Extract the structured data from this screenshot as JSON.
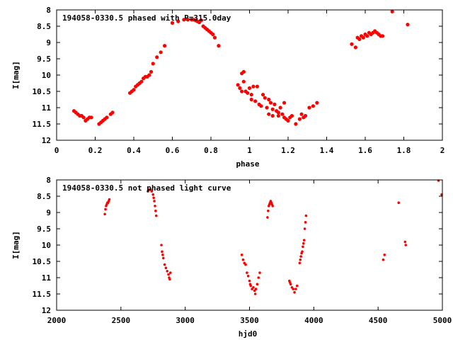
{
  "colors": {
    "points": "#ff0000",
    "axes": "#000000",
    "background": "#ffffff"
  },
  "chart_data": [
    {
      "type": "scatter",
      "title": "194058-0330.5 phased with P=315.0day",
      "xlabel": "phase",
      "ylabel": "I[mag]",
      "xlim": [
        0,
        2
      ],
      "ylim": [
        8,
        12
      ],
      "y_inverted": true,
      "grid": false,
      "xticks": [
        0,
        0.2,
        0.4,
        0.6,
        0.8,
        1,
        1.2,
        1.4,
        1.6,
        1.8,
        2
      ],
      "xtick_labels": [
        "0",
        "0.2",
        "0.4",
        "0.6",
        "0.8",
        "1",
        "1.2",
        "1.4",
        "1.6",
        "1.8",
        "2"
      ],
      "yticks": [
        8,
        8.5,
        9,
        9.5,
        10,
        10.5,
        11,
        11.5,
        12
      ],
      "ytick_labels": [
        "8",
        "8.5",
        "9",
        "9.5",
        "10",
        "10.5",
        "11",
        "11.5",
        "12"
      ],
      "series": [
        {
          "points": [
            [
              0.09,
              11.1
            ],
            [
              0.1,
              11.15
            ],
            [
              0.11,
              11.2
            ],
            [
              0.12,
              11.25
            ],
            [
              0.13,
              11.25
            ],
            [
              0.14,
              11.3
            ],
            [
              0.15,
              11.4
            ],
            [
              0.16,
              11.35
            ],
            [
              0.17,
              11.3
            ],
            [
              0.18,
              11.3
            ],
            [
              0.22,
              11.5
            ],
            [
              0.23,
              11.45
            ],
            [
              0.24,
              11.4
            ],
            [
              0.25,
              11.35
            ],
            [
              0.26,
              11.3
            ],
            [
              0.28,
              11.2
            ],
            [
              0.29,
              11.15
            ],
            [
              0.38,
              10.55
            ],
            [
              0.39,
              10.5
            ],
            [
              0.4,
              10.45
            ],
            [
              0.41,
              10.35
            ],
            [
              0.42,
              10.3
            ],
            [
              0.43,
              10.25
            ],
            [
              0.44,
              10.2
            ],
            [
              0.45,
              10.1
            ],
            [
              0.46,
              10.05
            ],
            [
              0.47,
              10.05
            ],
            [
              0.48,
              10.0
            ],
            [
              0.49,
              9.9
            ],
            [
              0.5,
              9.65
            ],
            [
              0.52,
              9.45
            ],
            [
              0.54,
              9.3
            ],
            [
              0.56,
              9.1
            ],
            [
              0.6,
              8.4
            ],
            [
              0.63,
              8.35
            ],
            [
              0.66,
              8.3
            ],
            [
              0.68,
              8.3
            ],
            [
              0.7,
              8.3
            ],
            [
              0.71,
              8.3
            ],
            [
              0.72,
              8.32
            ],
            [
              0.73,
              8.35
            ],
            [
              0.74,
              8.38
            ],
            [
              0.75,
              8.32
            ],
            [
              0.76,
              8.5
            ],
            [
              0.77,
              8.55
            ],
            [
              0.78,
              8.6
            ],
            [
              0.79,
              8.65
            ],
            [
              0.8,
              8.7
            ],
            [
              0.81,
              8.75
            ],
            [
              0.82,
              8.85
            ],
            [
              0.84,
              9.1
            ],
            [
              0.94,
              10.3
            ],
            [
              0.95,
              10.4
            ],
            [
              0.96,
              10.5
            ],
            [
              0.96,
              9.95
            ],
            [
              0.97,
              9.9
            ],
            [
              0.97,
              10.2
            ],
            [
              0.98,
              10.5
            ],
            [
              0.99,
              10.55
            ],
            [
              1.0,
              10.4
            ],
            [
              1.01,
              10.6
            ],
            [
              1.01,
              10.75
            ],
            [
              1.02,
              10.35
            ],
            [
              1.03,
              10.8
            ],
            [
              1.04,
              10.35
            ],
            [
              1.05,
              10.9
            ],
            [
              1.06,
              10.95
            ],
            [
              1.07,
              10.6
            ],
            [
              1.08,
              10.7
            ],
            [
              1.09,
              11.0
            ],
            [
              1.1,
              10.75
            ],
            [
              1.1,
              11.2
            ],
            [
              1.11,
              10.85
            ],
            [
              1.12,
              11.05
            ],
            [
              1.12,
              11.25
            ],
            [
              1.13,
              10.9
            ],
            [
              1.14,
              11.1
            ],
            [
              1.15,
              11.15
            ],
            [
              1.15,
              11.25
            ],
            [
              1.16,
              11.0
            ],
            [
              1.17,
              11.2
            ],
            [
              1.18,
              11.3
            ],
            [
              1.18,
              10.85
            ],
            [
              1.19,
              11.35
            ],
            [
              1.2,
              11.4
            ],
            [
              1.21,
              11.3
            ],
            [
              1.22,
              11.25
            ],
            [
              1.24,
              11.5
            ],
            [
              1.26,
              11.35
            ],
            [
              1.27,
              11.2
            ],
            [
              1.28,
              11.3
            ],
            [
              1.29,
              11.25
            ],
            [
              1.31,
              11.0
            ],
            [
              1.33,
              10.95
            ],
            [
              1.35,
              10.85
            ],
            [
              1.53,
              9.05
            ],
            [
              1.55,
              9.15
            ],
            [
              1.56,
              8.85
            ],
            [
              1.57,
              8.9
            ],
            [
              1.58,
              8.8
            ],
            [
              1.59,
              8.85
            ],
            [
              1.6,
              8.75
            ],
            [
              1.61,
              8.8
            ],
            [
              1.62,
              8.7
            ],
            [
              1.63,
              8.75
            ],
            [
              1.64,
              8.7
            ],
            [
              1.65,
              8.65
            ],
            [
              1.66,
              8.7
            ],
            [
              1.67,
              8.75
            ],
            [
              1.68,
              8.8
            ],
            [
              1.69,
              8.8
            ],
            [
              1.74,
              8.05
            ],
            [
              1.82,
              8.45
            ]
          ]
        }
      ]
    },
    {
      "type": "scatter",
      "title": "194058-0330.5 not phased light curve",
      "xlabel": "hjd0",
      "ylabel": "I[mag]",
      "xlim": [
        2000,
        5000
      ],
      "ylim": [
        8,
        12
      ],
      "y_inverted": true,
      "grid": false,
      "xticks": [
        2000,
        2500,
        3000,
        3500,
        4000,
        4500,
        5000
      ],
      "xtick_labels": [
        "2000",
        "2500",
        "3000",
        "3500",
        "4000",
        "4500",
        "5000"
      ],
      "yticks": [
        8,
        8.5,
        9,
        9.5,
        10,
        10.5,
        11,
        11.5,
        12
      ],
      "ytick_labels": [
        "8",
        "8.5",
        "9",
        "9.5",
        "10",
        "10.5",
        "11",
        "11.5",
        "12"
      ],
      "series": [
        {
          "points": [
            [
              2375,
              9.05
            ],
            [
              2380,
              8.9
            ],
            [
              2385,
              8.8
            ],
            [
              2390,
              8.75
            ],
            [
              2395,
              8.7
            ],
            [
              2400,
              8.7
            ],
            [
              2405,
              8.65
            ],
            [
              2410,
              8.6
            ],
            [
              2710,
              8.35
            ],
            [
              2720,
              8.3
            ],
            [
              2730,
              8.3
            ],
            [
              2740,
              8.35
            ],
            [
              2750,
              8.45
            ],
            [
              2755,
              8.55
            ],
            [
              2760,
              8.65
            ],
            [
              2765,
              8.8
            ],
            [
              2770,
              8.95
            ],
            [
              2775,
              9.1
            ],
            [
              2815,
              10.0
            ],
            [
              2820,
              10.2
            ],
            [
              2825,
              10.3
            ],
            [
              2830,
              10.4
            ],
            [
              2840,
              10.6
            ],
            [
              2850,
              10.7
            ],
            [
              2860,
              10.8
            ],
            [
              2870,
              10.9
            ],
            [
              2875,
              11.0
            ],
            [
              2880,
              11.05
            ],
            [
              2885,
              10.85
            ],
            [
              3440,
              10.3
            ],
            [
              3450,
              10.45
            ],
            [
              3460,
              10.55
            ],
            [
              3470,
              10.6
            ],
            [
              3480,
              10.85
            ],
            [
              3490,
              10.95
            ],
            [
              3500,
              11.1
            ],
            [
              3505,
              11.2
            ],
            [
              3510,
              11.25
            ],
            [
              3520,
              11.35
            ],
            [
              3530,
              11.3
            ],
            [
              3540,
              11.4
            ],
            [
              3545,
              11.5
            ],
            [
              3550,
              11.35
            ],
            [
              3560,
              11.2
            ],
            [
              3570,
              11.0
            ],
            [
              3580,
              10.85
            ],
            [
              3640,
              9.15
            ],
            [
              3645,
              8.95
            ],
            [
              3650,
              8.8
            ],
            [
              3655,
              8.75
            ],
            [
              3660,
              8.7
            ],
            [
              3665,
              8.65
            ],
            [
              3670,
              8.7
            ],
            [
              3675,
              8.75
            ],
            [
              3680,
              8.8
            ],
            [
              3810,
              11.1
            ],
            [
              3815,
              11.15
            ],
            [
              3820,
              11.2
            ],
            [
              3830,
              11.3
            ],
            [
              3840,
              11.35
            ],
            [
              3850,
              11.45
            ],
            [
              3860,
              11.35
            ],
            [
              3870,
              11.25
            ],
            [
              3890,
              10.55
            ],
            [
              3895,
              10.45
            ],
            [
              3900,
              10.35
            ],
            [
              3905,
              10.25
            ],
            [
              3910,
              10.2
            ],
            [
              3915,
              10.05
            ],
            [
              3920,
              9.95
            ],
            [
              3925,
              9.85
            ],
            [
              3930,
              9.5
            ],
            [
              3935,
              9.3
            ],
            [
              3940,
              9.1
            ],
            [
              4540,
              10.45
            ],
            [
              4550,
              10.3
            ],
            [
              4660,
              8.7
            ],
            [
              4710,
              9.9
            ],
            [
              4715,
              10.0
            ],
            [
              4970,
              8.0
            ],
            [
              5000,
              8.45
            ]
          ]
        }
      ]
    }
  ]
}
